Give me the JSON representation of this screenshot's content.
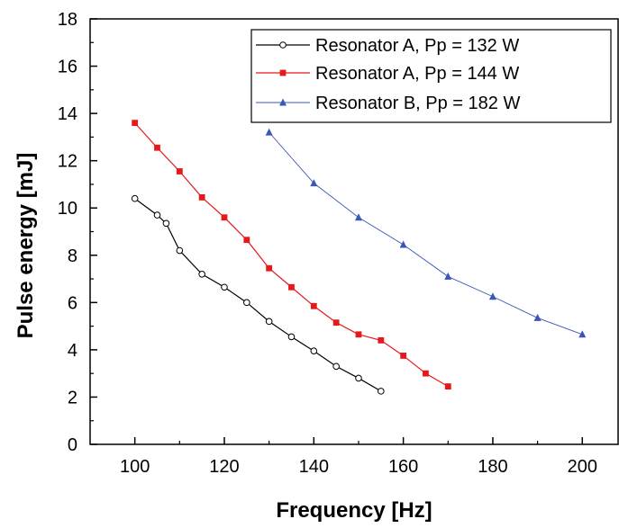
{
  "chart_data": {
    "type": "line",
    "title": "",
    "xlabel": "Frequency [Hz]",
    "ylabel": "Pulse energy [mJ]",
    "xlim": [
      90,
      208
    ],
    "ylim": [
      0,
      18
    ],
    "xticks": [
      100,
      120,
      140,
      160,
      180,
      200
    ],
    "yticks": [
      0,
      2,
      4,
      6,
      8,
      10,
      12,
      14,
      16,
      18
    ],
    "grid": false,
    "legend_position": "top-right",
    "series": [
      {
        "name": "Resonator A, Pp = 132 W",
        "color": "#000000",
        "marker": "open-circle",
        "x": [
          100,
          105,
          107,
          110,
          115,
          120,
          125,
          130,
          135,
          140,
          145,
          150,
          155
        ],
        "y": [
          10.4,
          9.7,
          9.35,
          8.2,
          7.2,
          6.65,
          6.0,
          5.2,
          4.55,
          3.95,
          3.3,
          2.8,
          2.25
        ]
      },
      {
        "name": "Resonator A, Pp = 144 W",
        "color": "#e8171b",
        "marker": "square",
        "x": [
          100,
          105,
          110,
          115,
          120,
          125,
          130,
          135,
          140,
          145,
          150,
          155,
          160,
          165,
          170
        ],
        "y": [
          13.6,
          12.55,
          11.55,
          10.45,
          9.6,
          8.65,
          7.45,
          6.65,
          5.85,
          5.15,
          4.65,
          4.4,
          3.75,
          3.0,
          2.45
        ]
      },
      {
        "name": "Resonator B, Pp = 182 W",
        "color": "#3a56b8",
        "marker": "triangle",
        "x": [
          130,
          140,
          150,
          160,
          170,
          180,
          190,
          200
        ],
        "y": [
          13.2,
          11.05,
          9.6,
          8.45,
          7.1,
          6.25,
          5.35,
          4.65
        ]
      }
    ]
  }
}
